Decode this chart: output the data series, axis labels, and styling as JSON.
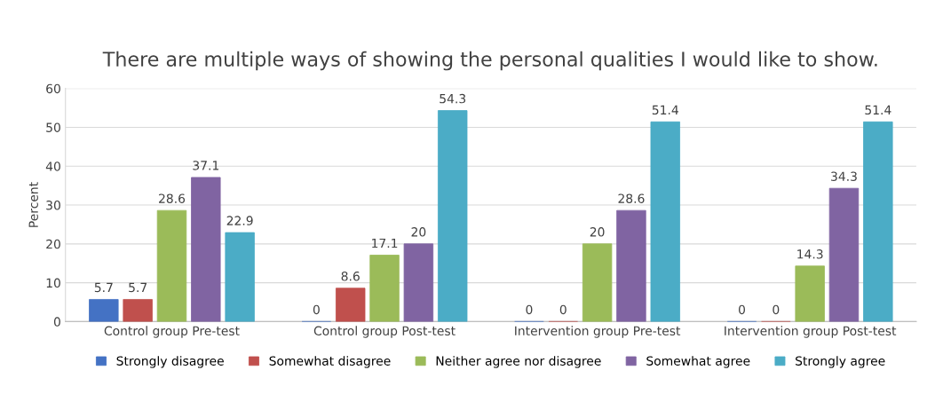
{
  "chart_data": {
    "type": "bar",
    "title": "There are multiple ways of showing the personal qualities I would like to show.",
    "ylabel": "Percent",
    "categories": [
      "Control group Pre-test",
      "Control group Post-test",
      "Intervention group Pre-test",
      "Intervention group Post-test"
    ],
    "series": [
      {
        "name": "Strongly disagree",
        "color": "#4472c4",
        "values": [
          5.7,
          0,
          0,
          0
        ]
      },
      {
        "name": "Somewhat disagree",
        "color": "#c0504d",
        "values": [
          5.7,
          8.6,
          0,
          0
        ]
      },
      {
        "name": "Neither agree nor disagree",
        "color": "#9bbb59",
        "values": [
          28.6,
          17.1,
          20,
          14.3
        ]
      },
      {
        "name": "Somewhat agree",
        "color": "#8064a2",
        "values": [
          37.1,
          20,
          28.6,
          34.3
        ]
      },
      {
        "name": "Strongly agree",
        "color": "#4bacc6",
        "values": [
          22.9,
          54.3,
          51.4,
          51.4
        ]
      }
    ],
    "ylim": [
      0,
      60
    ],
    "yticks": [
      0,
      10,
      20,
      30,
      40,
      50,
      60
    ],
    "grid": "y",
    "legend": "bottom",
    "data_labels": true
  }
}
